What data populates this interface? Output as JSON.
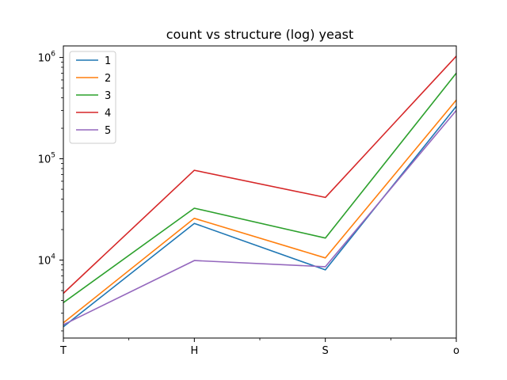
{
  "chart_data": {
    "type": "line",
    "title": "count vs structure (log) yeast",
    "xlabel": "",
    "ylabel": "",
    "categories": [
      "T",
      "H",
      "S",
      "o"
    ],
    "yscale": "log",
    "ylim": [
      1700,
      1300000
    ],
    "y_ticks": [
      {
        "value": 10000,
        "base": "10",
        "exp": "4"
      },
      {
        "value": 100000,
        "base": "10",
        "exp": "5"
      },
      {
        "value": 1000000,
        "base": "10",
        "exp": "6"
      }
    ],
    "grid": false,
    "legend": {
      "placement": "top-left"
    },
    "series": [
      {
        "name": "1",
        "color": "#1f77b4",
        "values": [
          2200,
          23000,
          8000,
          330000
        ]
      },
      {
        "name": "2",
        "color": "#ff7f0e",
        "values": [
          2400,
          25800,
          10500,
          380000
        ]
      },
      {
        "name": "3",
        "color": "#2ca02c",
        "values": [
          3800,
          32500,
          16500,
          700000
        ]
      },
      {
        "name": "4",
        "color": "#d62728",
        "values": [
          4700,
          77000,
          41500,
          1030000
        ]
      },
      {
        "name": "5",
        "color": "#9467bd",
        "values": [
          2300,
          9900,
          8600,
          300000
        ]
      }
    ]
  }
}
